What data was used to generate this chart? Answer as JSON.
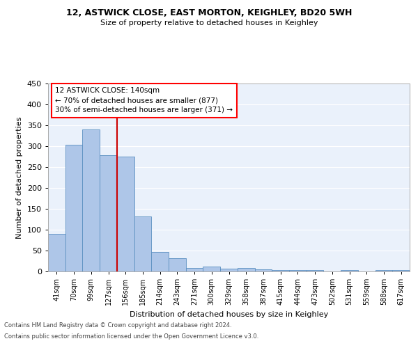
{
  "title1": "12, ASTWICK CLOSE, EAST MORTON, KEIGHLEY, BD20 5WH",
  "title2": "Size of property relative to detached houses in Keighley",
  "xlabel": "Distribution of detached houses by size in Keighley",
  "ylabel": "Number of detached properties",
  "footnote1": "Contains HM Land Registry data © Crown copyright and database right 2024.",
  "footnote2": "Contains public sector information licensed under the Open Government Licence v3.0.",
  "annotation_line1": "12 ASTWICK CLOSE: 140sqm",
  "annotation_line2": "← 70% of detached houses are smaller (877)",
  "annotation_line3": "30% of semi-detached houses are larger (371) →",
  "bar_labels": [
    "41sqm",
    "70sqm",
    "99sqm",
    "127sqm",
    "156sqm",
    "185sqm",
    "214sqm",
    "243sqm",
    "271sqm",
    "300sqm",
    "329sqm",
    "358sqm",
    "387sqm",
    "415sqm",
    "444sqm",
    "473sqm",
    "502sqm",
    "531sqm",
    "559sqm",
    "588sqm",
    "617sqm"
  ],
  "bar_values": [
    90,
    303,
    340,
    278,
    275,
    132,
    47,
    31,
    9,
    11,
    7,
    8,
    5,
    4,
    4,
    3,
    0,
    4,
    0,
    4,
    4
  ],
  "bar_color": "#aec6e8",
  "bar_edge_color": "#5a8fc0",
  "background_color": "#eaf1fb",
  "grid_color": "#ffffff",
  "vline_x": 3.5,
  "vline_color": "#cc0000",
  "ylim": [
    0,
    450
  ],
  "yticks": [
    0,
    50,
    100,
    150,
    200,
    250,
    300,
    350,
    400,
    450
  ]
}
